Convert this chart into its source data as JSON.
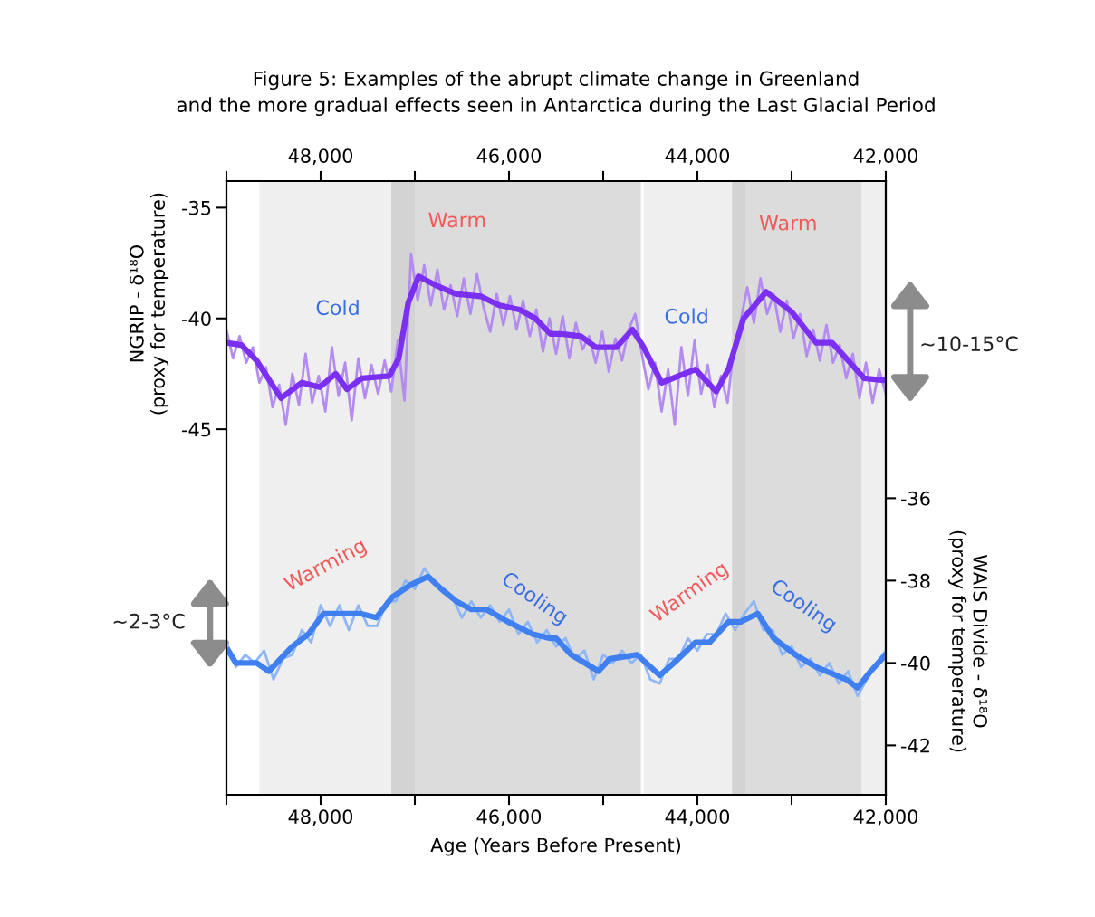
{
  "chart_data": {
    "type": "line",
    "title": "Figure 5: Examples of the abrupt climate change in Greenland\nand the more gradual effects seen in Antarctica during the Last Glacial Period",
    "xlabel": "Age (Years Before Present)",
    "ylabel": "NGRIP - δ¹⁸O\n(proxy for temperature)",
    "y2label": "WAIS Divide - δ¹⁸O\n(proxy for temperature)",
    "xlim": [
      49000,
      42000
    ],
    "xticks": [
      {
        "value": 49000,
        "label": null
      },
      {
        "value": 48000,
        "label": "48,000"
      },
      {
        "value": 47000,
        "label": null
      },
      {
        "value": 46000,
        "label": "46,000"
      },
      {
        "value": 45000,
        "label": null
      },
      {
        "value": 44000,
        "label": "44,000"
      },
      {
        "value": 43000,
        "label": null
      },
      {
        "value": 42000,
        "label": "42,000"
      }
    ],
    "x2lim": [
      49000,
      42000
    ],
    "x2ticks": [
      {
        "value": 49000,
        "label": null
      },
      {
        "value": 48000,
        "label": "48,000"
      },
      {
        "value": 47000,
        "label": null
      },
      {
        "value": 46000,
        "label": "46,000"
      },
      {
        "value": 45000,
        "label": null
      },
      {
        "value": 44000,
        "label": "44,000"
      },
      {
        "value": 43000,
        "label": null
      },
      {
        "value": 42000,
        "label": "42,000"
      }
    ],
    "ylim": [
      -61.5,
      -33.8
    ],
    "yticks": [
      -35,
      -40,
      -45
    ],
    "y2lim": [
      -43.2,
      -28.3
    ],
    "y2ticks": [
      -36,
      -38,
      -40,
      -42
    ],
    "grid": false,
    "legend": false,
    "bands": [
      {
        "axis": "x",
        "from": 48650,
        "to": 47250,
        "color": "#efefef"
      },
      {
        "axis": "x",
        "from": 47250,
        "to": 44600,
        "color": "#dcdcdc"
      },
      {
        "axis": "x",
        "from": 44570,
        "to": 43630,
        "color": "#efefef"
      },
      {
        "axis": "x",
        "from": 43630,
        "to": 42260,
        "color": "#dcdcdc"
      },
      {
        "axis": "x",
        "from": 42260,
        "to": 42000,
        "color": "#efefef"
      },
      {
        "axis": "x",
        "from": 47250,
        "to": 47000,
        "color": "#d3d3d3"
      },
      {
        "axis": "x",
        "from": 43630,
        "to": 43490,
        "color": "#d3d3d3"
      }
    ],
    "series": [
      {
        "color": "#b48cf0",
        "x": [
          49000,
          48930,
          48860,
          48790,
          48720,
          48650,
          48580,
          48510,
          48440,
          48370,
          48300,
          48230,
          48160,
          48090,
          48020,
          47950,
          47880,
          47810,
          47740,
          47670,
          47600,
          47530,
          47460,
          47390,
          47320,
          47250,
          47180,
          47110,
          47040,
          46970,
          46900,
          46830,
          46760,
          46690,
          46620,
          46550,
          46480,
          46410,
          46340,
          46270,
          46200,
          46130,
          46060,
          45990,
          45920,
          45850,
          45780,
          45710,
          45640,
          45570,
          45500,
          45430,
          45360,
          45290,
          45220,
          45150,
          45080,
          45010,
          44940,
          44870,
          44800,
          44730,
          44660,
          44590,
          44520,
          44450,
          44380,
          44310,
          44240,
          44170,
          44100,
          44030,
          43960,
          43890,
          43820,
          43750,
          43680,
          43610,
          43540,
          43470,
          43400,
          43330,
          43260,
          43190,
          43120,
          43050,
          42980,
          42910,
          42840,
          42770,
          42700,
          42630,
          42560,
          42490,
          42420,
          42350,
          42280,
          42210,
          42140,
          42070,
          42000
        ],
        "values": [
          -40.5,
          -41.8,
          -40.8,
          -42.0,
          -41.3,
          -42.9,
          -42.2,
          -44.0,
          -43.0,
          -44.8,
          -42.5,
          -43.9,
          -41.6,
          -43.8,
          -42.6,
          -44.2,
          -41.3,
          -43.5,
          -42.0,
          -44.6,
          -41.8,
          -43.6,
          -42.1,
          -43.4,
          -41.9,
          -43.3,
          -41.0,
          -43.7,
          -37.1,
          -39.2,
          -37.6,
          -39.4,
          -37.8,
          -39.6,
          -38.5,
          -39.9,
          -38.2,
          -39.8,
          -38.0,
          -39.5,
          -40.6,
          -38.9,
          -40.3,
          -39.0,
          -40.5,
          -39.2,
          -40.8,
          -39.6,
          -41.5,
          -40.0,
          -41.6,
          -39.9,
          -41.8,
          -40.2,
          -41.4,
          -40.8,
          -42.0,
          -40.6,
          -42.4,
          -40.9,
          -41.9,
          -40.5,
          -39.8,
          -41.6,
          -43.2,
          -42.0,
          -44.2,
          -42.3,
          -44.8,
          -41.3,
          -43.5,
          -41.0,
          -43.4,
          -42.1,
          -44.0,
          -42.6,
          -43.8,
          -41.2,
          -40.1,
          -38.6,
          -40.2,
          -38.2,
          -39.8,
          -38.9,
          -40.6,
          -39.2,
          -40.9,
          -39.8,
          -41.7,
          -40.5,
          -41.9,
          -40.3,
          -42.0,
          -41.2,
          -42.7,
          -41.6,
          -43.6,
          -42.0,
          -43.8,
          -42.3,
          -43.4
        ]
      },
      {
        "color": "#7b2ff0",
        "x": [
          49000,
          48840,
          48680,
          48420,
          48200,
          48010,
          47840,
          47720,
          47560,
          47270,
          47170,
          47070,
          46960,
          46780,
          46560,
          46300,
          46110,
          45890,
          45720,
          45560,
          45440,
          45240,
          45080,
          44860,
          44690,
          44570,
          44380,
          44020,
          43800,
          43670,
          43510,
          43270,
          43000,
          42740,
          42570,
          42420,
          42230,
          42000
        ],
        "values": [
          -41.1,
          -41.2,
          -41.9,
          -43.6,
          -42.9,
          -43.1,
          -42.5,
          -43.2,
          -42.7,
          -42.6,
          -41.8,
          -39.3,
          -38.1,
          -38.5,
          -38.9,
          -39.0,
          -39.4,
          -39.6,
          -40.0,
          -40.7,
          -40.7,
          -40.8,
          -41.3,
          -41.3,
          -40.5,
          -41.3,
          -42.9,
          -42.3,
          -43.3,
          -42.3,
          -40.0,
          -38.8,
          -39.7,
          -41.1,
          -41.1,
          -41.8,
          -42.7,
          -42.8
        ]
      },
      {
        "color": "#8fb6f5",
        "axis": "y2",
        "x": [
          49000,
          48900,
          48800,
          48700,
          48600,
          48500,
          48400,
          48300,
          48200,
          48100,
          48000,
          47900,
          47800,
          47700,
          47600,
          47500,
          47400,
          47300,
          47200,
          47100,
          47000,
          46900,
          46800,
          46700,
          46600,
          46500,
          46400,
          46300,
          46200,
          46100,
          46000,
          45900,
          45800,
          45700,
          45600,
          45500,
          45400,
          45300,
          45200,
          45100,
          45000,
          44900,
          44800,
          44700,
          44600,
          44500,
          44400,
          44300,
          44200,
          44100,
          44000,
          43900,
          43800,
          43700,
          43600,
          43500,
          43400,
          43300,
          43200,
          43100,
          43000,
          42900,
          42800,
          42700,
          42600,
          42500,
          42400,
          42300,
          42200,
          42100,
          42000
        ],
        "values": [
          -39.5,
          -40.1,
          -39.8,
          -40.0,
          -39.7,
          -40.4,
          -39.9,
          -39.8,
          -39.2,
          -39.5,
          -38.6,
          -39.1,
          -38.6,
          -39.2,
          -38.6,
          -39.1,
          -39.1,
          -38.5,
          -38.5,
          -38.0,
          -38.2,
          -37.7,
          -38.0,
          -38.3,
          -38.4,
          -38.9,
          -38.5,
          -38.9,
          -38.6,
          -39.0,
          -38.7,
          -39.3,
          -39.0,
          -39.5,
          -39.2,
          -39.6,
          -39.4,
          -39.9,
          -39.7,
          -40.4,
          -39.8,
          -40.0,
          -39.7,
          -40.0,
          -39.8,
          -40.4,
          -40.5,
          -39.9,
          -39.9,
          -39.4,
          -39.7,
          -39.3,
          -39.3,
          -38.8,
          -39.2,
          -38.8,
          -38.5,
          -39.2,
          -39.2,
          -39.8,
          -39.6,
          -40.1,
          -39.9,
          -40.3,
          -40.0,
          -40.5,
          -40.2,
          -40.8,
          -40.4,
          -40.0,
          -39.7
        ]
      },
      {
        "color": "#3f7ff0",
        "axis": "y2",
        "x": [
          48980,
          48900,
          48680,
          48550,
          48300,
          48130,
          47970,
          47820,
          47580,
          47410,
          47240,
          47040,
          46860,
          46720,
          46560,
          46400,
          46240,
          46010,
          45750,
          45560,
          45500,
          45340,
          45050,
          44930,
          44640,
          44400,
          44250,
          44020,
          43870,
          43670,
          43540,
          43360,
          43190,
          42960,
          42740,
          42420,
          42300,
          42160,
          42000
        ],
        "values": [
          -39.7,
          -40.0,
          -40.0,
          -40.2,
          -39.6,
          -39.3,
          -38.8,
          -38.8,
          -38.8,
          -38.9,
          -38.4,
          -38.1,
          -37.9,
          -38.2,
          -38.5,
          -38.7,
          -38.7,
          -39.0,
          -39.3,
          -39.4,
          -39.4,
          -39.8,
          -40.2,
          -39.9,
          -39.8,
          -40.3,
          -40.0,
          -39.5,
          -39.5,
          -39.0,
          -39.0,
          -38.8,
          -39.4,
          -39.8,
          -40.1,
          -40.4,
          -40.6,
          -40.2,
          -39.8
        ]
      }
    ],
    "annotations": [
      "Warm",
      "Warm",
      "Cold",
      "Cold",
      "Warming",
      "Cooling",
      "Warming",
      "Cooling",
      "~10-15°C",
      "~2-3°C"
    ]
  }
}
